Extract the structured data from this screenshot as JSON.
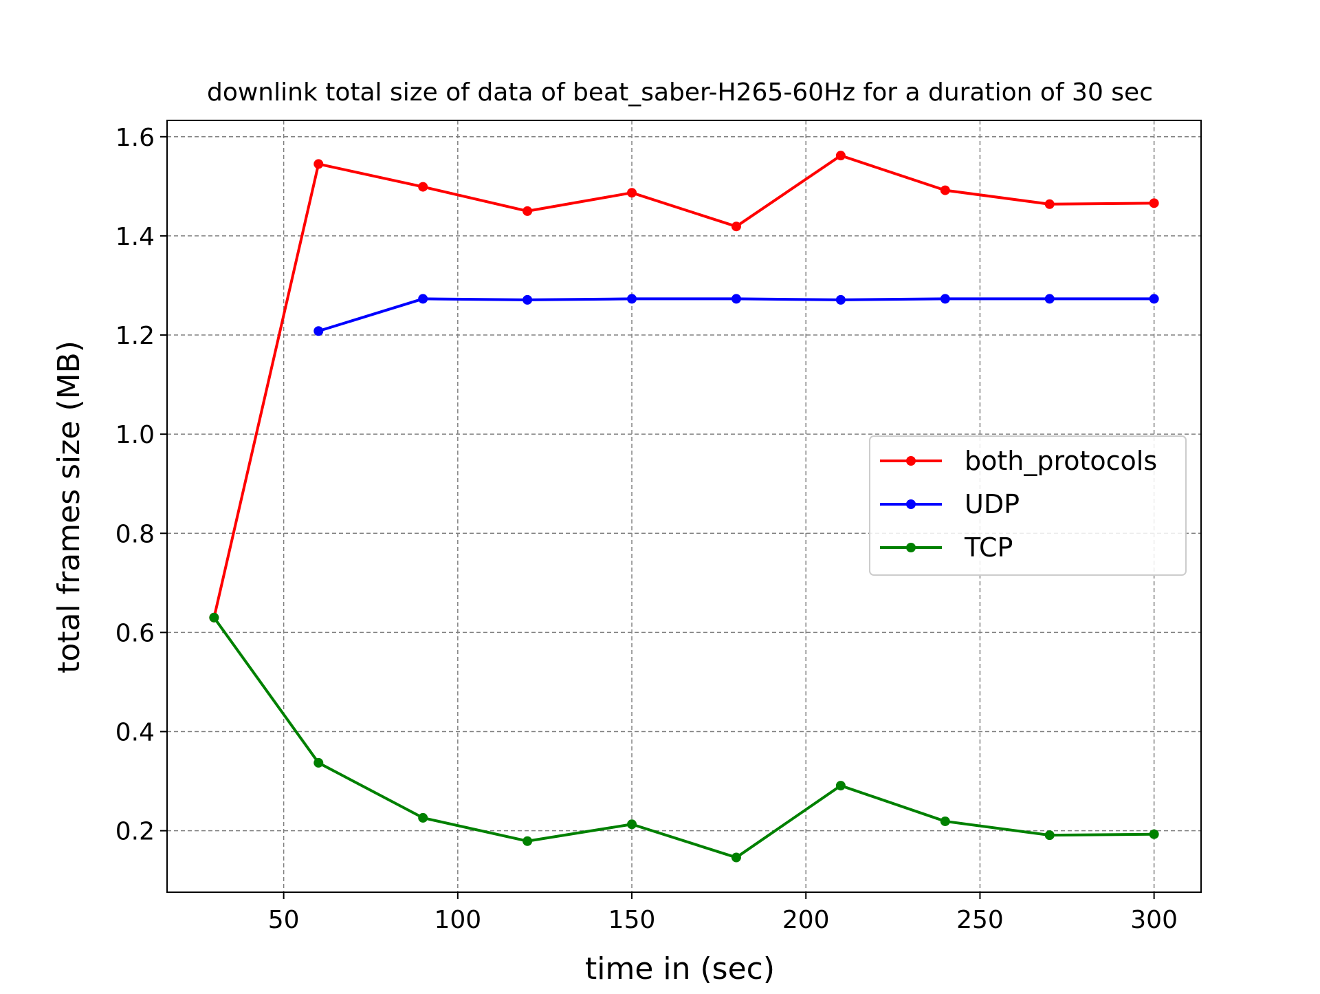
{
  "chart_data": {
    "type": "line",
    "title": "downlink total size of data of beat_saber-H265-60Hz for a duration of 30 sec",
    "xlabel": "time in (sec)",
    "ylabel": "total frames size (MB)",
    "xlim": [
      16.5,
      313.5
    ],
    "ylim": [
      0.076,
      1.633
    ],
    "xticks": [
      50,
      100,
      150,
      200,
      250,
      300
    ],
    "yticks": [
      0.2,
      0.4,
      0.6,
      0.8,
      1.0,
      1.2,
      1.4,
      1.6
    ],
    "ytick_labels": [
      "0.2",
      "0.4",
      "0.6",
      "0.8",
      "1.0",
      "1.2",
      "1.4",
      "1.6"
    ],
    "grid": true,
    "legend_position": "center-right",
    "series": [
      {
        "name": "both_protocols",
        "color": "#ff0000",
        "x": [
          30,
          60,
          90,
          120,
          150,
          180,
          210,
          240,
          270,
          300
        ],
        "y": [
          0.63,
          1.545,
          1.499,
          1.45,
          1.487,
          1.419,
          1.562,
          1.492,
          1.464,
          1.466
        ]
      },
      {
        "name": "UDP",
        "color": "#0000ff",
        "x": [
          60,
          90,
          120,
          150,
          180,
          210,
          240,
          270,
          300
        ],
        "y": [
          1.208,
          1.273,
          1.271,
          1.273,
          1.273,
          1.271,
          1.273,
          1.273,
          1.273
        ]
      },
      {
        "name": "TCP",
        "color": "#008000",
        "x": [
          30,
          60,
          90,
          120,
          150,
          180,
          210,
          240,
          270,
          300
        ],
        "y": [
          0.63,
          0.337,
          0.226,
          0.179,
          0.213,
          0.146,
          0.291,
          0.219,
          0.191,
          0.193
        ]
      }
    ]
  }
}
